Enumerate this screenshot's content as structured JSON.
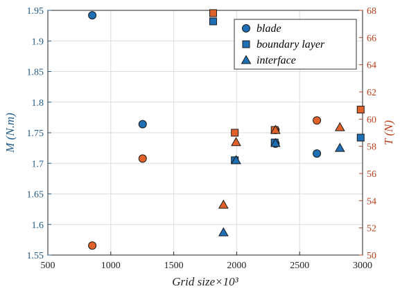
{
  "chart_data": {
    "type": "scatter",
    "xlabel": "Grid size×10³",
    "ylabel_left": "M (N.m)",
    "ylabel_right": "T (N)",
    "xlim": [
      500,
      3000
    ],
    "ylim_left": [
      1.55,
      1.95
    ],
    "ylim_right": [
      50,
      68
    ],
    "x_ticks": [
      "500",
      "1000",
      "1500",
      "2000",
      "2500",
      "3000"
    ],
    "y_left_ticks": [
      "1.55",
      "1.6",
      "1.65",
      "1.7",
      "1.75",
      "1.8",
      "1.85",
      "1.9",
      "1.95"
    ],
    "y_right_ticks": [
      "50",
      "52",
      "54",
      "56",
      "58",
      "60",
      "62",
      "64",
      "66",
      "68"
    ],
    "grid": true,
    "legend_position": "top-right",
    "colors": {
      "left_axis": "#1f5a8a",
      "right_axis": "#b8401a",
      "blue_marker": "#1f6fb5",
      "orange_marker": "#e0622a"
    },
    "series": [
      {
        "name": "blade",
        "marker": "circle",
        "axis": "left",
        "points": [
          [
            853,
            1.942
          ],
          [
            1253,
            1.764
          ],
          [
            2308,
            1.732
          ],
          [
            2637,
            1.716
          ]
        ]
      },
      {
        "name": "boundary layer",
        "marker": "square",
        "axis": "left",
        "points": [
          [
            1813,
            1.932
          ],
          [
            1985,
            1.705
          ],
          [
            2302,
            1.734
          ],
          [
            2985,
            1.742
          ]
        ]
      },
      {
        "name": "interface",
        "marker": "triangle",
        "axis": "left",
        "points": [
          [
            1895,
            1.587
          ],
          [
            1995,
            1.705
          ],
          [
            2308,
            1.733
          ],
          [
            2820,
            1.725
          ]
        ]
      },
      {
        "marker": "circle",
        "axis": "right",
        "points": [
          [
            853,
            50.7
          ],
          [
            1253,
            57.1
          ],
          [
            2308,
            59.2
          ],
          [
            2637,
            59.9
          ]
        ]
      },
      {
        "marker": "square",
        "axis": "right",
        "points": [
          [
            1813,
            67.8
          ],
          [
            1985,
            59.0
          ],
          [
            2302,
            59.2
          ],
          [
            2985,
            60.7
          ]
        ]
      },
      {
        "marker": "triangle",
        "axis": "right",
        "points": [
          [
            1895,
            53.7
          ],
          [
            1995,
            58.3
          ],
          [
            2308,
            59.2
          ],
          [
            2820,
            59.4
          ]
        ]
      }
    ]
  }
}
